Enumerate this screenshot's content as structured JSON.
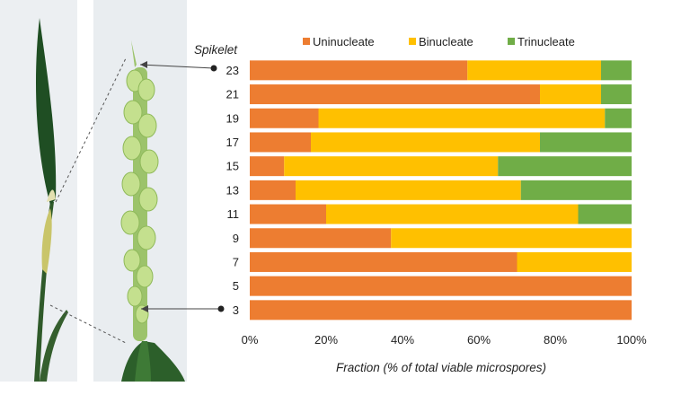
{
  "chart_data": {
    "type": "bar",
    "orientation": "horizontal",
    "stacked": true,
    "row_title": "Spikelet",
    "categories": [
      "23",
      "21",
      "19",
      "17",
      "15",
      "13",
      "11",
      "9",
      "7",
      "5",
      "3"
    ],
    "series": [
      {
        "name": "Uninucleate",
        "color": "#ed7d31",
        "values": [
          57,
          76,
          18,
          16,
          9,
          12,
          20,
          37,
          70,
          100,
          100
        ]
      },
      {
        "name": "Binucleate",
        "color": "#ffc000",
        "values": [
          35,
          16,
          75,
          60,
          56,
          59,
          66,
          63,
          30,
          0,
          0
        ]
      },
      {
        "name": "Trinucleate",
        "color": "#70ad47",
        "values": [
          8,
          8,
          7,
          24,
          35,
          29,
          14,
          0,
          0,
          0,
          0
        ]
      }
    ],
    "xlabel": "Fraction (% of total viable microspores)",
    "xticks": [
      "0%",
      "20%",
      "40%",
      "60%",
      "80%",
      "100%"
    ],
    "xlim": [
      0,
      100
    ],
    "legend_position": "top",
    "grid": false
  }
}
